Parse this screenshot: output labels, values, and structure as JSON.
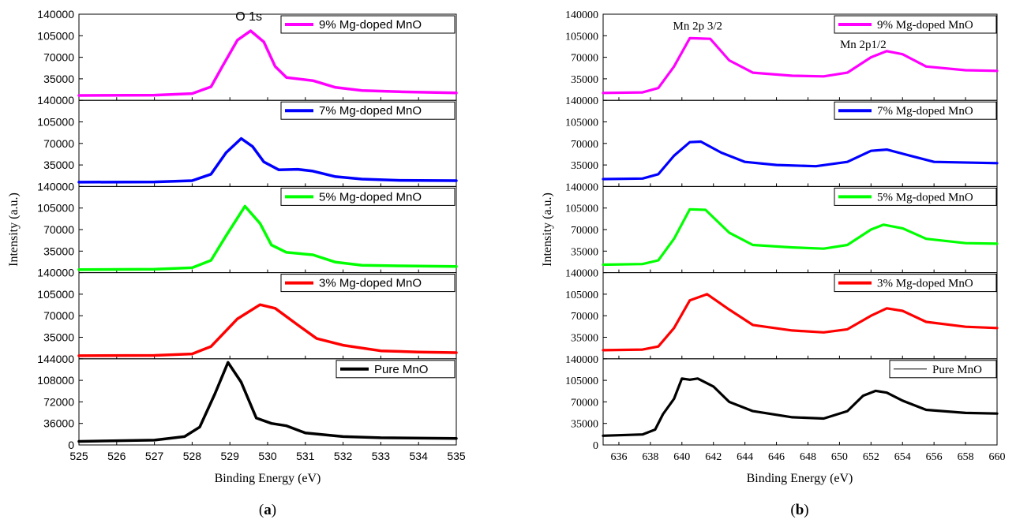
{
  "chart_data": [
    {
      "type": "line",
      "panel_label": "(a)",
      "panel_letter": "a",
      "xlabel": "Binding Energy (eV)",
      "ylabel": "Intensity (a.u.)",
      "xlim": [
        525,
        535
      ],
      "x_ticks": [
        "525",
        "526",
        "527",
        "528",
        "529",
        "530",
        "531",
        "532",
        "533",
        "534",
        "535"
      ],
      "annotations": [
        {
          "text": "O 1s",
          "x": 529.5,
          "y": 130000,
          "subplot": 0
        }
      ],
      "subplots": [
        {
          "series_name": "9% Mg-doped MnO",
          "color": "#ff00ff",
          "ylim": [
            0,
            140000
          ],
          "y_ticks": [
            "140000",
            "105000",
            "70000",
            "35000"
          ],
          "points": [
            [
              525,
              8000
            ],
            [
              527,
              8500
            ],
            [
              528,
              11000
            ],
            [
              528.5,
              22000
            ],
            [
              528.8,
              55000
            ],
            [
              529.2,
              98000
            ],
            [
              529.55,
              113000
            ],
            [
              529.9,
              95000
            ],
            [
              530.2,
              55000
            ],
            [
              530.5,
              37000
            ],
            [
              531.2,
              32000
            ],
            [
              531.8,
              21000
            ],
            [
              532.5,
              16000
            ],
            [
              533.5,
              14000
            ],
            [
              535,
              12000
            ]
          ]
        },
        {
          "series_name": "7% Mg-doped MnO",
          "color": "#0000ff",
          "ylim": [
            0,
            140000
          ],
          "y_ticks": [
            "140000",
            "105000",
            "70000",
            "35000"
          ],
          "points": [
            [
              525,
              7000
            ],
            [
              527,
              7500
            ],
            [
              528,
              9500
            ],
            [
              528.5,
              20000
            ],
            [
              528.9,
              55000
            ],
            [
              529.3,
              78000
            ],
            [
              529.6,
              65000
            ],
            [
              529.9,
              40000
            ],
            [
              530.3,
              27000
            ],
            [
              530.8,
              28000
            ],
            [
              531.2,
              25000
            ],
            [
              531.8,
              16000
            ],
            [
              532.5,
              12000
            ],
            [
              533.5,
              10000
            ],
            [
              535,
              9500
            ]
          ]
        },
        {
          "series_name": "5% Mg-doped MnO",
          "color": "#00ff00",
          "ylim": [
            0,
            140000
          ],
          "y_ticks": [
            "140000",
            "105000",
            "70000",
            "35000"
          ],
          "points": [
            [
              525,
              5000
            ],
            [
              527,
              5500
            ],
            [
              528,
              8000
            ],
            [
              528.5,
              20000
            ],
            [
              528.9,
              60000
            ],
            [
              529.4,
              108000
            ],
            [
              529.8,
              80000
            ],
            [
              530.1,
              45000
            ],
            [
              530.5,
              33000
            ],
            [
              531.2,
              29000
            ],
            [
              531.8,
              17000
            ],
            [
              532.5,
              12000
            ],
            [
              533.5,
              11000
            ],
            [
              535,
              10000
            ]
          ]
        },
        {
          "series_name": "3% Mg-doped MnO",
          "color": "#ff0000",
          "ylim": [
            0,
            140000
          ],
          "y_ticks": [
            "140000",
            "105000",
            "70000",
            "35000"
          ],
          "points": [
            [
              525,
              5000
            ],
            [
              527,
              5500
            ],
            [
              528,
              8000
            ],
            [
              528.5,
              20000
            ],
            [
              529.2,
              65000
            ],
            [
              529.8,
              88000
            ],
            [
              530.2,
              82000
            ],
            [
              530.8,
              55000
            ],
            [
              531.3,
              33000
            ],
            [
              532,
              22000
            ],
            [
              533,
              13000
            ],
            [
              534,
              11000
            ],
            [
              535,
              10000
            ]
          ]
        },
        {
          "series_name": "Pure MnO",
          "color": "#000000",
          "ylim": [
            0,
            144000
          ],
          "y_ticks": [
            "144000",
            "108000",
            "72000",
            "36000",
            "0"
          ],
          "points": [
            [
              525,
              6000
            ],
            [
              527,
              8000
            ],
            [
              527.8,
              14000
            ],
            [
              528.2,
              30000
            ],
            [
              528.6,
              85000
            ],
            [
              528.95,
              138000
            ],
            [
              529.3,
              105000
            ],
            [
              529.7,
              45000
            ],
            [
              530.1,
              36000
            ],
            [
              530.5,
              32000
            ],
            [
              531,
              20000
            ],
            [
              532,
              14000
            ],
            [
              533,
              12000
            ],
            [
              535,
              11000
            ]
          ]
        }
      ]
    },
    {
      "type": "line",
      "panel_label": "(b)",
      "panel_letter": "b",
      "xlabel": "Binding Energy (eV)",
      "ylabel": "Intensity (a.u.)",
      "xlim": [
        635,
        660
      ],
      "x_ticks": [
        "636",
        "638",
        "640",
        "642",
        "644",
        "646",
        "648",
        "650",
        "652",
        "654",
        "656",
        "658",
        "660"
      ],
      "annotations": [
        {
          "text": "Mn 2p 3/2",
          "x": 641,
          "y": 115000,
          "subplot": 0
        },
        {
          "text": "Mn 2p1/2",
          "x": 651.5,
          "y": 85000,
          "subplot": 0
        }
      ],
      "subplots": [
        {
          "series_name": "9% Mg-doped MnO",
          "color": "#ff00ff",
          "ylim": [
            0,
            140000
          ],
          "y_ticks": [
            "140000",
            "105000",
            "70000",
            "35000"
          ],
          "points": [
            [
              635,
              12000
            ],
            [
              637.5,
              13000
            ],
            [
              638.5,
              20000
            ],
            [
              639.5,
              55000
            ],
            [
              640.5,
              101000
            ],
            [
              641.8,
              100000
            ],
            [
              643,
              65000
            ],
            [
              644.5,
              45000
            ],
            [
              647,
              40000
            ],
            [
              649,
              39000
            ],
            [
              650.5,
              45000
            ],
            [
              652,
              70000
            ],
            [
              653,
              80000
            ],
            [
              654,
              75000
            ],
            [
              655.5,
              55000
            ],
            [
              658,
              49000
            ],
            [
              660,
              48000
            ]
          ]
        },
        {
          "series_name": "7% Mg-doped MnO",
          "color": "#0000ff",
          "ylim": [
            0,
            140000
          ],
          "y_ticks": [
            "140000",
            "105000",
            "70000",
            "35000"
          ],
          "points": [
            [
              635,
              12000
            ],
            [
              637.5,
              13000
            ],
            [
              638.5,
              20000
            ],
            [
              639.5,
              50000
            ],
            [
              640.5,
              72000
            ],
            [
              641.2,
              73000
            ],
            [
              642.5,
              55000
            ],
            [
              644,
              40000
            ],
            [
              646,
              35000
            ],
            [
              648.5,
              33000
            ],
            [
              650.5,
              40000
            ],
            [
              652,
              58000
            ],
            [
              653,
              60000
            ],
            [
              654.5,
              50000
            ],
            [
              656,
              40000
            ],
            [
              660,
              38000
            ]
          ]
        },
        {
          "series_name": "5% Mg-doped MnO",
          "color": "#00ff00",
          "ylim": [
            0,
            140000
          ],
          "y_ticks": [
            "140000",
            "105000",
            "70000",
            "35000"
          ],
          "points": [
            [
              635,
              13000
            ],
            [
              637.5,
              14000
            ],
            [
              638.5,
              20000
            ],
            [
              639.5,
              55000
            ],
            [
              640.5,
              103000
            ],
            [
              641.5,
              102000
            ],
            [
              643,
              65000
            ],
            [
              644.5,
              45000
            ],
            [
              647,
              41000
            ],
            [
              649,
              39000
            ],
            [
              650.5,
              45000
            ],
            [
              652,
              70000
            ],
            [
              652.8,
              78000
            ],
            [
              654,
              72000
            ],
            [
              655.5,
              55000
            ],
            [
              658,
              48000
            ],
            [
              660,
              47000
            ]
          ]
        },
        {
          "series_name": "3% Mg-doped MnO",
          "color": "#ff0000",
          "ylim": [
            0,
            140000
          ],
          "y_ticks": [
            "140000",
            "105000",
            "70000",
            "35000"
          ],
          "points": [
            [
              635,
              14000
            ],
            [
              637.5,
              15000
            ],
            [
              638.5,
              20000
            ],
            [
              639.5,
              50000
            ],
            [
              640.5,
              95000
            ],
            [
              641.6,
              105000
            ],
            [
              643,
              80000
            ],
            [
              644.5,
              55000
            ],
            [
              647,
              46000
            ],
            [
              649,
              43000
            ],
            [
              650.5,
              48000
            ],
            [
              652,
              70000
            ],
            [
              653,
              82000
            ],
            [
              654,
              78000
            ],
            [
              655.5,
              60000
            ],
            [
              658,
              52000
            ],
            [
              660,
              50000
            ]
          ]
        },
        {
          "series_name": "Pure MnO",
          "color": "#000000",
          "ylim": [
            0,
            140000
          ],
          "y_ticks": [
            "140000",
            "105000",
            "70000",
            "35000",
            "0"
          ],
          "points": [
            [
              635,
              15000
            ],
            [
              637.5,
              17000
            ],
            [
              638.3,
              25000
            ],
            [
              638.8,
              50000
            ],
            [
              639.5,
              75000
            ],
            [
              640,
              108000
            ],
            [
              640.5,
              106000
            ],
            [
              641,
              108000
            ],
            [
              642,
              95000
            ],
            [
              643,
              70000
            ],
            [
              644.5,
              55000
            ],
            [
              647,
              45000
            ],
            [
              649,
              43000
            ],
            [
              650.5,
              55000
            ],
            [
              651.5,
              80000
            ],
            [
              652.3,
              88000
            ],
            [
              653,
              85000
            ],
            [
              654,
              72000
            ],
            [
              655.5,
              57000
            ],
            [
              658,
              52000
            ],
            [
              660,
              51000
            ]
          ]
        }
      ]
    }
  ]
}
